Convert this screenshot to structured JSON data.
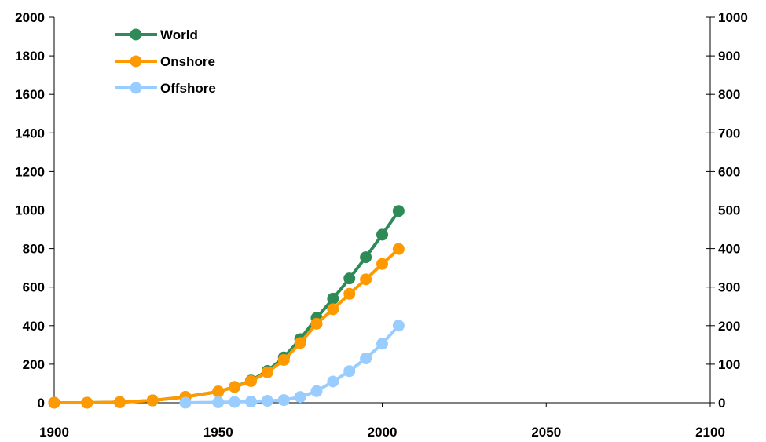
{
  "chart_data": {
    "type": "line",
    "title": "",
    "xlabel": "",
    "ylabel": "",
    "xlim": [
      1900,
      2100
    ],
    "ylim_left": [
      0,
      2000
    ],
    "ylim_right": [
      0,
      1000
    ],
    "x_ticks": [
      1900,
      1950,
      2000,
      2050,
      2100
    ],
    "y_ticks_left": [
      0,
      200,
      400,
      600,
      800,
      1000,
      1200,
      1400,
      1600,
      1800,
      2000
    ],
    "y_ticks_right": [
      0,
      100,
      200,
      300,
      400,
      500,
      600,
      700,
      800,
      900,
      1000
    ],
    "grid": false,
    "legend_position": "top-left",
    "series": [
      {
        "name": "World",
        "color": "#2e8b57",
        "axis": "left",
        "x": [
          1900,
          1910,
          1920,
          1930,
          1940,
          1950,
          1955,
          1960,
          1965,
          1970,
          1975,
          1980,
          1985,
          1990,
          1995,
          2000,
          2005
        ],
        "y": [
          0,
          0,
          3,
          12,
          30,
          58,
          82,
          115,
          165,
          235,
          330,
          440,
          540,
          645,
          755,
          872,
          995
        ]
      },
      {
        "name": "Onshore",
        "color": "#ff9900",
        "axis": "left",
        "x": [
          1900,
          1910,
          1920,
          1930,
          1940,
          1950,
          1955,
          1960,
          1965,
          1970,
          1975,
          1980,
          1985,
          1990,
          1995,
          2000,
          2005
        ],
        "y": [
          0,
          0,
          3,
          12,
          30,
          58,
          82,
          112,
          158,
          222,
          310,
          410,
          485,
          565,
          640,
          720,
          798
        ]
      },
      {
        "name": "Offshore",
        "color": "#99ccff",
        "axis": "right",
        "x": [
          1940,
          1950,
          1955,
          1960,
          1965,
          1970,
          1975,
          1980,
          1985,
          1990,
          1995,
          2000,
          2005
        ],
        "y": [
          0,
          1,
          2,
          3,
          5,
          7,
          15,
          30,
          55,
          82,
          115,
          153,
          200
        ]
      }
    ]
  }
}
